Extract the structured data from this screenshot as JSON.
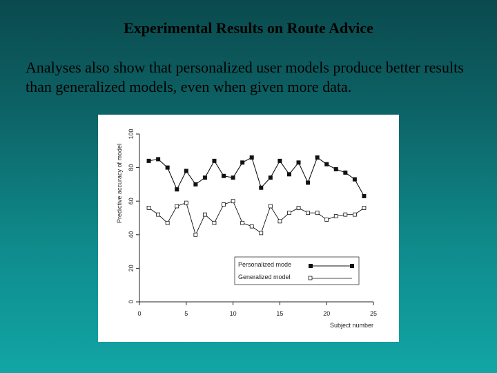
{
  "slide": {
    "title": "Experimental Results on Route Advice",
    "body": "Analyses also show that personalized user models produce better results than generalized models, even when given more data."
  },
  "chart_data": {
    "type": "line",
    "title": "",
    "xlabel": "Subject number",
    "ylabel": "Predictive accuracy of model",
    "xlim": [
      0,
      25
    ],
    "ylim": [
      0,
      100
    ],
    "xticks": [
      0,
      5,
      10,
      15,
      20,
      25
    ],
    "yticks": [
      0,
      20,
      40,
      60,
      80,
      100
    ],
    "grid": false,
    "legend_position": "bottom-right",
    "series": [
      {
        "name": "Personalized mode",
        "marker": "filled-square",
        "color": "#111111",
        "x": [
          1,
          2,
          3,
          4,
          5,
          6,
          7,
          8,
          9,
          10,
          11,
          12,
          13,
          14,
          15,
          16,
          17,
          18,
          19,
          20,
          21,
          22,
          23
        ],
        "y": [
          84,
          85,
          80,
          67,
          78,
          70,
          74,
          84,
          75,
          74,
          83,
          86,
          68,
          74,
          84,
          76,
          83,
          71,
          86,
          82,
          79,
          77,
          73
        ],
        "x_end": [
          24
        ],
        "y_end": [
          63
        ]
      },
      {
        "name": "Generalized model",
        "marker": "open-square",
        "color": "#111111",
        "x": [
          1,
          2,
          3,
          4,
          5,
          6,
          7,
          8,
          9,
          10,
          11,
          12,
          13,
          14,
          15,
          16,
          17,
          18,
          19,
          20,
          21,
          22,
          23,
          24
        ],
        "y": [
          56,
          52,
          47,
          57,
          59,
          40,
          52,
          47,
          58,
          60,
          47,
          45,
          41,
          57,
          48,
          53,
          56,
          53,
          53,
          49,
          51,
          52,
          52,
          56
        ]
      }
    ]
  }
}
